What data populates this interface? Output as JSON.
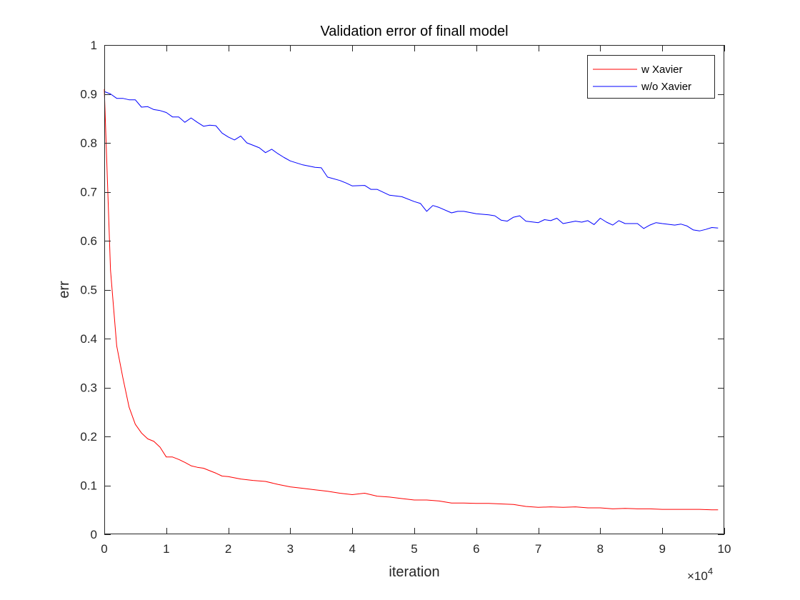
{
  "chart_data": {
    "type": "line",
    "title": "Validation error of finall model",
    "xlabel": "iteration",
    "ylabel": "err",
    "x_multiplier": "×10",
    "x_multiplier_exp": "4",
    "xlim": [
      0,
      100000
    ],
    "ylim": [
      0,
      1
    ],
    "xticks": [
      0,
      10000,
      20000,
      30000,
      40000,
      50000,
      60000,
      70000,
      80000,
      90000,
      100000
    ],
    "xtick_labels": [
      "0",
      "1",
      "2",
      "3",
      "4",
      "5",
      "6",
      "7",
      "8",
      "9",
      "10"
    ],
    "yticks": [
      0,
      0.1,
      0.2,
      0.3,
      0.4,
      0.5,
      0.6,
      0.7,
      0.8,
      0.9,
      1
    ],
    "ytick_labels": [
      "0",
      "0.1",
      "0.2",
      "0.3",
      "0.4",
      "0.5",
      "0.6",
      "0.7",
      "0.8",
      "0.9",
      "1"
    ],
    "grid": false,
    "legend_position": "top-right",
    "series": [
      {
        "name": "w Xavier",
        "color": "#ff0000",
        "x": [
          0,
          1000,
          2000,
          3000,
          4000,
          5000,
          6000,
          7000,
          8000,
          9000,
          10000,
          11000,
          12000,
          13000,
          14000,
          15000,
          16000,
          17000,
          18000,
          19000,
          20000,
          22000,
          24000,
          26000,
          28000,
          30000,
          32000,
          34000,
          36000,
          38000,
          40000,
          42000,
          44000,
          46000,
          48000,
          50000,
          52000,
          54000,
          56000,
          58000,
          60000,
          62000,
          64000,
          66000,
          68000,
          70000,
          72000,
          74000,
          76000,
          78000,
          80000,
          82000,
          84000,
          86000,
          88000,
          90000,
          92000,
          94000,
          96000,
          98000,
          99000
        ],
        "y": [
          0.91,
          0.54,
          0.385,
          0.32,
          0.26,
          0.225,
          0.207,
          0.195,
          0.19,
          0.178,
          0.158,
          0.158,
          0.153,
          0.147,
          0.14,
          0.137,
          0.135,
          0.13,
          0.125,
          0.119,
          0.118,
          0.113,
          0.11,
          0.108,
          0.102,
          0.097,
          0.094,
          0.091,
          0.088,
          0.084,
          0.081,
          0.084,
          0.078,
          0.076,
          0.073,
          0.07,
          0.07,
          0.068,
          0.064,
          0.064,
          0.063,
          0.063,
          0.062,
          0.061,
          0.057,
          0.055,
          0.056,
          0.055,
          0.056,
          0.054,
          0.054,
          0.052,
          0.053,
          0.052,
          0.052,
          0.051,
          0.051,
          0.051,
          0.051,
          0.05,
          0.05
        ]
      },
      {
        "name": "w/o Xavier",
        "color": "#0000ff",
        "x": [
          0,
          1000,
          2000,
          3000,
          4000,
          5000,
          6000,
          7000,
          8000,
          9000,
          10000,
          11000,
          12000,
          13000,
          14000,
          15000,
          16000,
          17000,
          18000,
          19000,
          20000,
          21000,
          22000,
          23000,
          24000,
          25000,
          26000,
          27000,
          28000,
          29000,
          30000,
          32000,
          34000,
          35000,
          36000,
          38000,
          39000,
          40000,
          42000,
          43000,
          44000,
          46000,
          48000,
          50000,
          51000,
          52000,
          53000,
          54000,
          56000,
          57000,
          58000,
          60000,
          62000,
          63000,
          64000,
          65000,
          66000,
          67000,
          68000,
          70000,
          71000,
          72000,
          73000,
          74000,
          76000,
          77000,
          78000,
          79000,
          80000,
          81000,
          82000,
          83000,
          84000,
          86000,
          87000,
          88000,
          89000,
          90000,
          92000,
          93000,
          94000,
          95000,
          96000,
          97000,
          98000,
          99000
        ],
        "y": [
          0.905,
          0.9,
          0.891,
          0.891,
          0.888,
          0.888,
          0.873,
          0.874,
          0.868,
          0.866,
          0.862,
          0.853,
          0.853,
          0.842,
          0.851,
          0.842,
          0.834,
          0.836,
          0.835,
          0.82,
          0.812,
          0.806,
          0.814,
          0.8,
          0.795,
          0.79,
          0.78,
          0.787,
          0.778,
          0.77,
          0.763,
          0.755,
          0.75,
          0.749,
          0.73,
          0.723,
          0.718,
          0.712,
          0.713,
          0.705,
          0.705,
          0.693,
          0.69,
          0.68,
          0.676,
          0.66,
          0.672,
          0.668,
          0.657,
          0.66,
          0.66,
          0.655,
          0.653,
          0.651,
          0.642,
          0.64,
          0.648,
          0.651,
          0.64,
          0.637,
          0.643,
          0.641,
          0.646,
          0.635,
          0.64,
          0.638,
          0.641,
          0.633,
          0.646,
          0.638,
          0.632,
          0.641,
          0.635,
          0.635,
          0.625,
          0.632,
          0.637,
          0.635,
          0.632,
          0.634,
          0.63,
          0.622,
          0.62,
          0.623,
          0.627,
          0.626
        ]
      }
    ]
  }
}
